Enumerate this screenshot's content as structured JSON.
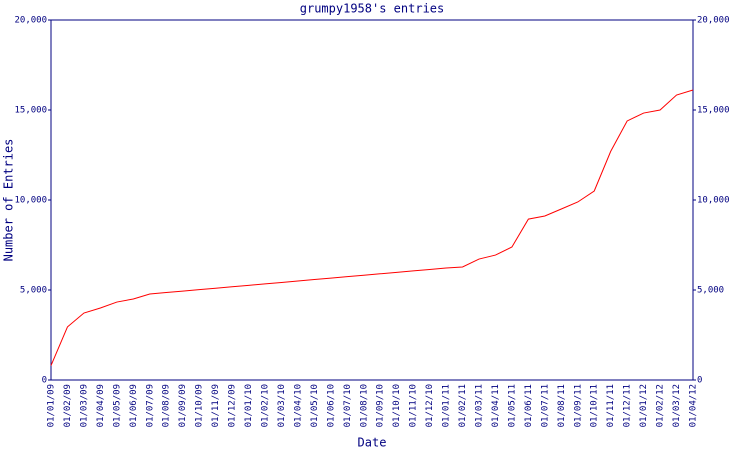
{
  "chart_data": {
    "type": "line",
    "title": "grumpy1958's entries",
    "xlabel": "Date",
    "ylabel": "Number of Entries",
    "categories": [
      "01/01/09",
      "01/02/09",
      "01/03/09",
      "01/04/09",
      "01/05/09",
      "01/06/09",
      "01/07/09",
      "01/08/09",
      "01/09/09",
      "01/10/09",
      "01/11/09",
      "01/12/09",
      "01/01/10",
      "01/02/10",
      "01/03/10",
      "01/04/10",
      "01/05/10",
      "01/06/10",
      "01/07/10",
      "01/08/10",
      "01/09/10",
      "01/10/10",
      "01/11/10",
      "01/12/10",
      "01/01/11",
      "01/02/11",
      "01/03/11",
      "01/04/11",
      "01/05/11",
      "01/06/11",
      "01/07/11",
      "01/08/11",
      "01/09/11",
      "01/10/11",
      "01/11/11",
      "01/12/11",
      "01/01/12",
      "01/02/12",
      "01/03/12",
      "01/04/12"
    ],
    "series": [
      {
        "name": "Entries",
        "color": "#ff0000",
        "values": [
          800,
          2950,
          3720,
          4000,
          4330,
          4500,
          4780,
          4860,
          4940,
          5020,
          5100,
          5180,
          5260,
          5340,
          5420,
          5500,
          5580,
          5660,
          5740,
          5820,
          5900,
          5980,
          6060,
          6140,
          6220,
          6280,
          6720,
          6940,
          7390,
          8940,
          9110,
          9500,
          9890,
          10500,
          12700,
          14390,
          14830,
          15000,
          15830,
          16110
        ]
      }
    ],
    "ylim": [
      0,
      20000
    ],
    "yticks": [
      0,
      {
        "value": 5000,
        "label": "5,000"
      },
      {
        "value": 10000,
        "label": "10,000"
      },
      {
        "value": 15000,
        "label": "15,000"
      },
      {
        "value": 20000,
        "label": "20,000"
      }
    ],
    "y2lim": [
      0,
      20000
    ],
    "y2ticks": [
      0,
      {
        "value": 5000,
        "label": "5,000"
      },
      {
        "value": 10000,
        "label": "10,000"
      },
      {
        "value": 15000,
        "label": "15,000"
      },
      {
        "value": 20000,
        "label": "20,000"
      }
    ],
    "grid": false
  }
}
